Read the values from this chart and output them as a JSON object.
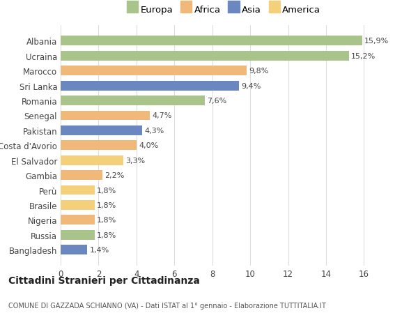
{
  "categories": [
    "Albania",
    "Ucraina",
    "Marocco",
    "Sri Lanka",
    "Romania",
    "Senegal",
    "Pakistan",
    "Costa d'Avorio",
    "El Salvador",
    "Gambia",
    "Perù",
    "Brasile",
    "Nigeria",
    "Russia",
    "Bangladesh"
  ],
  "values": [
    15.9,
    15.2,
    9.8,
    9.4,
    7.6,
    4.7,
    4.3,
    4.0,
    3.3,
    2.2,
    1.8,
    1.8,
    1.8,
    1.8,
    1.4
  ],
  "labels": [
    "15,9%",
    "15,2%",
    "9,8%",
    "9,4%",
    "7,6%",
    "4,7%",
    "4,3%",
    "4,0%",
    "3,3%",
    "2,2%",
    "1,8%",
    "1,8%",
    "1,8%",
    "1,8%",
    "1,4%"
  ],
  "continents": [
    "Europa",
    "Europa",
    "Africa",
    "Asia",
    "Europa",
    "Africa",
    "Asia",
    "Africa",
    "America",
    "Africa",
    "America",
    "America",
    "Africa",
    "Europa",
    "Asia"
  ],
  "colors": {
    "Europa": "#a8c48a",
    "Africa": "#f0b97a",
    "Asia": "#6b87c0",
    "America": "#f5d07a"
  },
  "legend_order": [
    "Europa",
    "Africa",
    "Asia",
    "America"
  ],
  "title": "Cittadini Stranieri per Cittadinanza",
  "subtitle": "COMUNE DI GAZZADA SCHIANNO (VA) - Dati ISTAT al 1° gennaio - Elaborazione TUTTITALIA.IT",
  "xlabel_ticks": [
    0,
    2,
    4,
    6,
    8,
    10,
    12,
    14,
    16
  ],
  "xlim": [
    0,
    17.2
  ],
  "background_color": "#ffffff",
  "grid_color": "#dddddd"
}
